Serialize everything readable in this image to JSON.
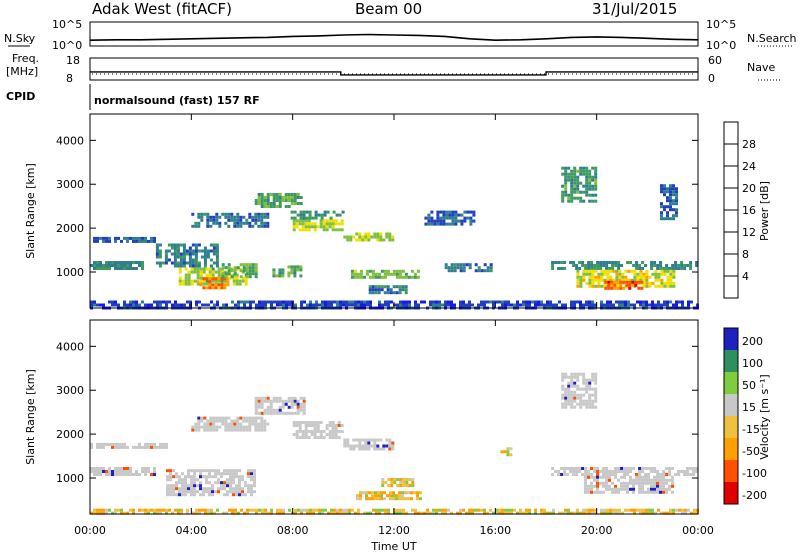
{
  "header": {
    "station": "Adak West (fitACF)",
    "beam": "Beam 00",
    "date": "31/Jul/2015"
  },
  "strips": {
    "nsky_label": "N.Sky",
    "nsearch_label": "N.Search",
    "freq_label": "Freq.",
    "freq_unit": "[MHz]",
    "nave_label": "Nave",
    "cpid_label": "CPID",
    "cpid_value": "normalsound (fast) 157 RF",
    "noise_ticks_left": [
      "10^5",
      "10^0"
    ],
    "noise_ticks_right": [
      "10^5",
      "10^0"
    ],
    "freq_ticks": [
      "18",
      "8"
    ],
    "nave_ticks": [
      "60",
      "0"
    ]
  },
  "colors": {
    "power": [
      "#1a1ae6",
      "#2040c0",
      "#2f7f8f",
      "#3e9a5e",
      "#7fbf3f",
      "#f0e000",
      "#ffa000",
      "#ff5000",
      "#e00000"
    ],
    "velocity": [
      "#e00000",
      "#ff5000",
      "#ffa000",
      "#f0c040",
      "#c8c8c8",
      "#7fcc3f",
      "#2f8f5f",
      "#2020c0"
    ]
  },
  "chart_data": [
    {
      "type": "line",
      "id": "noise",
      "series": [
        {
          "x": [
            0,
            1,
            2,
            3,
            4,
            5,
            6,
            7,
            8,
            9,
            10,
            11,
            12,
            13,
            14,
            15,
            16,
            17,
            18,
            19,
            20,
            21,
            22,
            23,
            24
          ],
          "y": [
            1.2,
            1.3,
            1.3,
            1.4,
            1.5,
            1.6,
            1.7,
            1.8,
            2.0,
            2.1,
            2.3,
            2.4,
            2.3,
            2.2,
            2.0,
            1.5,
            1.2,
            1.3,
            1.5,
            1.8,
            1.9,
            1.8,
            1.6,
            1.4,
            1.3
          ]
        }
      ],
      "ylim": [
        0,
        5
      ]
    },
    {
      "type": "line",
      "id": "frequency",
      "series": [
        {
          "x": [
            0,
            9.9,
            9.9,
            18,
            18,
            24
          ],
          "y": [
            11.7,
            11.7,
            10.3,
            10.3,
            11.7,
            11.7
          ]
        }
      ],
      "ylim": [
        8,
        18
      ]
    },
    {
      "type": "heatmap",
      "id": "power",
      "xlabel": "",
      "ylabel": "Slant Range [km]",
      "xlim": [
        0,
        24
      ],
      "ylim": [
        180,
        4600
      ],
      "yticks": [
        "1000",
        "2000",
        "3000",
        "4000"
      ],
      "colorbar": {
        "label": "Power [dB]",
        "ticks": [
          "4",
          "8",
          "12",
          "16",
          "20",
          "24",
          "28"
        ],
        "range": [
          0,
          32
        ]
      },
      "features": [
        {
          "t0": 0.0,
          "t1": 2.2,
          "r0": 1050,
          "r1": 1250,
          "v": 10
        },
        {
          "t0": 0.0,
          "t1": 2.5,
          "r0": 1700,
          "r1": 1800,
          "v": 7
        },
        {
          "t0": 2.6,
          "t1": 5.0,
          "r0": 1150,
          "r1": 1650,
          "v": 9
        },
        {
          "t0": 3.5,
          "t1": 6.2,
          "r0": 700,
          "r1": 1100,
          "v": 17
        },
        {
          "t0": 4.2,
          "t1": 5.5,
          "r0": 650,
          "r1": 880,
          "v": 24
        },
        {
          "t0": 5.2,
          "t1": 6.6,
          "r0": 900,
          "r1": 1200,
          "v": 14
        },
        {
          "t0": 4.0,
          "t1": 7.0,
          "r0": 2050,
          "r1": 2350,
          "v": 8
        },
        {
          "t0": 6.5,
          "t1": 8.3,
          "r0": 2500,
          "r1": 2800,
          "v": 13
        },
        {
          "t0": 8.0,
          "t1": 10.0,
          "r0": 1950,
          "r1": 2200,
          "v": 18
        },
        {
          "t0": 7.8,
          "t1": 10.0,
          "r0": 2250,
          "r1": 2400,
          "v": 11
        },
        {
          "t0": 7.2,
          "t1": 8.3,
          "r0": 900,
          "r1": 1150,
          "v": 13
        },
        {
          "t0": 10.0,
          "t1": 12.0,
          "r0": 1700,
          "r1": 1900,
          "v": 17
        },
        {
          "t0": 10.3,
          "t1": 13.0,
          "r0": 850,
          "r1": 1050,
          "v": 15
        },
        {
          "t0": 11.0,
          "t1": 12.5,
          "r0": 500,
          "r1": 700,
          "v": 9
        },
        {
          "t0": 13.2,
          "t1": 15.2,
          "r0": 2100,
          "r1": 2400,
          "v": 7
        },
        {
          "t0": 14.0,
          "t1": 15.8,
          "r0": 1050,
          "r1": 1200,
          "v": 9
        },
        {
          "t0": 18.2,
          "t1": 24.0,
          "r0": 1050,
          "r1": 1250,
          "v": 10
        },
        {
          "t0": 19.2,
          "t1": 23.0,
          "r0": 650,
          "r1": 1050,
          "v": 19
        },
        {
          "t0": 20.3,
          "t1": 21.8,
          "r0": 600,
          "r1": 800,
          "v": 26
        },
        {
          "t0": 18.6,
          "t1": 20.0,
          "r0": 2600,
          "r1": 3400,
          "v": 12
        },
        {
          "t0": 22.5,
          "t1": 23.2,
          "r0": 2200,
          "r1": 3000,
          "v": 7
        },
        {
          "t0": 0.0,
          "t1": 24.0,
          "r0": 180,
          "r1": 350,
          "v": 5
        }
      ]
    },
    {
      "type": "heatmap",
      "id": "velocity",
      "xlabel": "Time UT",
      "ylabel": "Slant Range [km]",
      "xlim": [
        0,
        24
      ],
      "ylim": [
        180,
        4600
      ],
      "xticks": [
        "00:00",
        "04:00",
        "08:00",
        "12:00",
        "16:00",
        "20:00",
        "00:00"
      ],
      "yticks": [
        "1000",
        "2000",
        "3000",
        "4000"
      ],
      "colorbar": {
        "label": "Velocity [m s⁻¹]",
        "ticks": [
          "200",
          "100",
          "50",
          "15",
          "-15",
          "-50",
          "-100",
          "-200"
        ]
      },
      "features": [
        {
          "t0": 0.0,
          "t1": 2.5,
          "r0": 1050,
          "r1": 1250,
          "v": 0
        },
        {
          "t0": 0.0,
          "t1": 3.0,
          "r0": 1700,
          "r1": 1800,
          "v": 0
        },
        {
          "t0": 3.0,
          "t1": 6.5,
          "r0": 650,
          "r1": 1200,
          "v": 0
        },
        {
          "t0": 4.0,
          "t1": 7.0,
          "r0": 2100,
          "r1": 2400,
          "v": 0
        },
        {
          "t0": 6.5,
          "t1": 8.5,
          "r0": 2500,
          "r1": 2850,
          "v": 0
        },
        {
          "t0": 8.0,
          "t1": 10.0,
          "r0": 1900,
          "r1": 2300,
          "v": 0
        },
        {
          "t0": 10.0,
          "t1": 12.0,
          "r0": 1650,
          "r1": 1900,
          "v": 0
        },
        {
          "t0": 10.5,
          "t1": 13.0,
          "r0": 500,
          "r1": 700,
          "v": -30
        },
        {
          "t0": 11.5,
          "t1": 12.8,
          "r0": 850,
          "r1": 1000,
          "v": -30
        },
        {
          "t0": 16.2,
          "t1": 16.6,
          "r0": 1550,
          "r1": 1700,
          "v": -30
        },
        {
          "t0": 18.2,
          "t1": 24.0,
          "r0": 1050,
          "r1": 1250,
          "v": 0
        },
        {
          "t0": 19.5,
          "t1": 23.0,
          "r0": 650,
          "r1": 1050,
          "v": 0
        },
        {
          "t0": 18.6,
          "t1": 20.0,
          "r0": 2600,
          "r1": 3400,
          "v": 0
        },
        {
          "t0": 0.0,
          "t1": 24.0,
          "r0": 180,
          "r1": 300,
          "v": -30
        }
      ]
    }
  ]
}
